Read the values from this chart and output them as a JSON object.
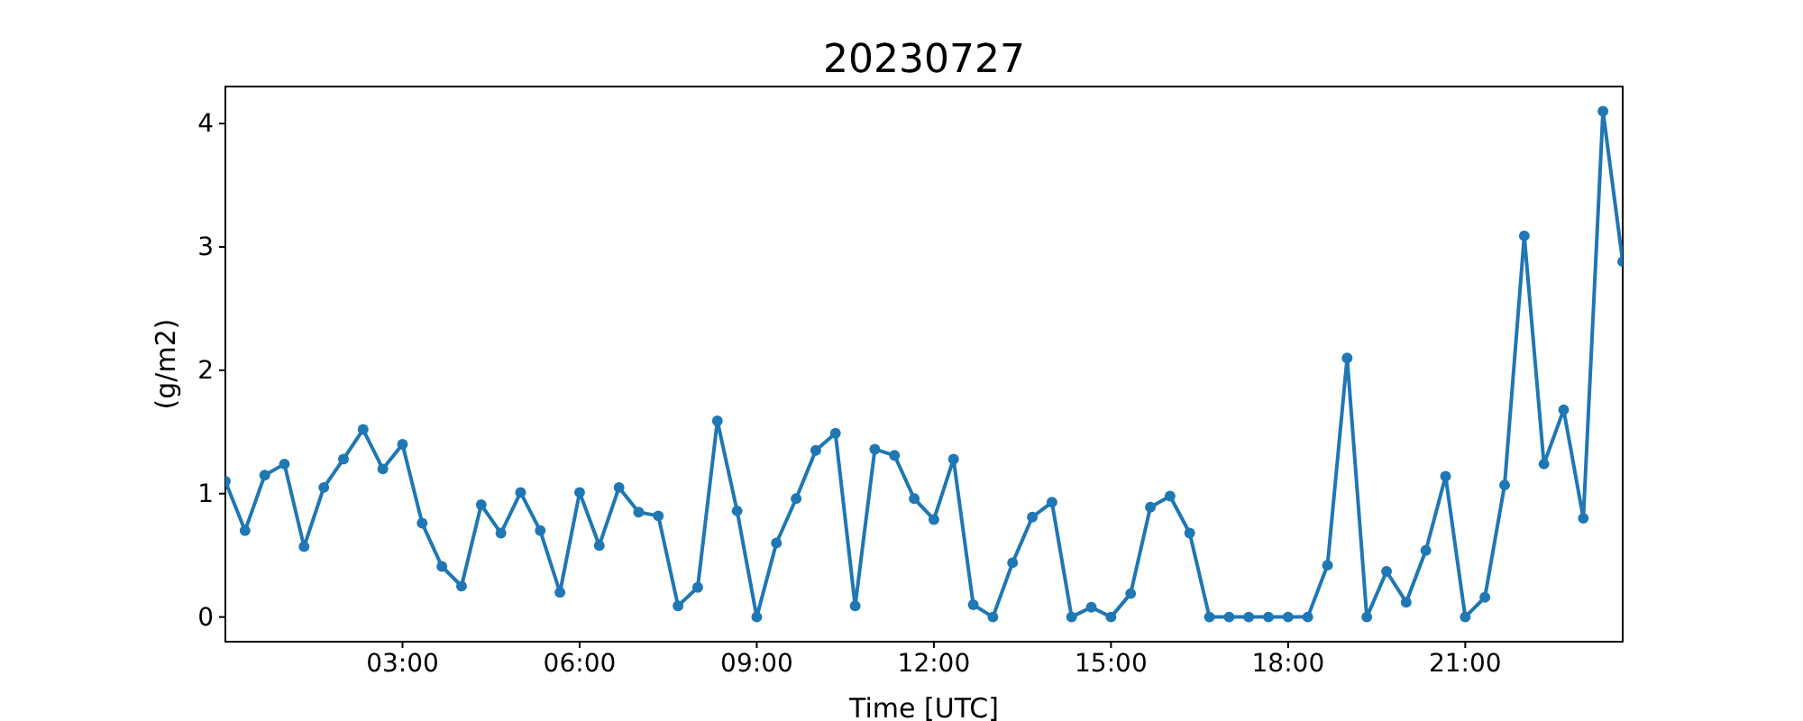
{
  "chart_data": {
    "type": "line",
    "title": "20230727",
    "xlabel": "Time [UTC]",
    "ylabel": "(g/m2)",
    "x": [
      0,
      0.333,
      0.667,
      1,
      1.333,
      1.667,
      2,
      2.333,
      2.667,
      3,
      3.333,
      3.667,
      4,
      4.333,
      4.667,
      5,
      5.333,
      5.667,
      6,
      6.333,
      6.667,
      7,
      7.333,
      7.667,
      8,
      8.333,
      8.667,
      9,
      9.333,
      9.667,
      10,
      10.333,
      10.667,
      11,
      11.333,
      11.667,
      12,
      12.333,
      12.667,
      13,
      13.333,
      13.667,
      14,
      14.333,
      14.667,
      15,
      15.333,
      15.667,
      16,
      16.333,
      16.667,
      17,
      17.333,
      17.667,
      18,
      18.333,
      18.667,
      19,
      19.333,
      19.667,
      20,
      20.333,
      20.667,
      21,
      21.333,
      21.667,
      22,
      22.333,
      22.667,
      23,
      23.333,
      23.667
    ],
    "series": [
      {
        "color": "#1f77b4",
        "values": [
          1.1,
          0.7,
          1.15,
          1.24,
          0.57,
          1.05,
          1.28,
          1.52,
          1.2,
          1.4,
          0.76,
          0.41,
          0.25,
          0.91,
          0.68,
          1.01,
          0.7,
          0.2,
          1.01,
          0.58,
          1.05,
          0.85,
          0.82,
          0.09,
          0.24,
          1.59,
          0.86,
          0,
          0.6,
          0.96,
          1.35,
          1.49,
          0.09,
          1.36,
          1.31,
          0.96,
          0.79,
          1.28,
          0.1,
          0,
          0.44,
          0.81,
          0.93,
          0,
          0.08,
          0,
          0.19,
          0.89,
          0.98,
          0.68,
          0,
          0,
          0,
          0,
          0,
          0,
          0.42,
          2.1,
          0,
          0.37,
          0.12,
          0.54,
          1.14,
          0,
          0.16,
          1.07,
          3.09,
          1.24,
          1.68,
          0.8,
          4.1,
          2.88
        ]
      }
    ],
    "xlim": [
      0,
      23.667
    ],
    "xticks": [
      {
        "value": 3,
        "label": "03:00"
      },
      {
        "value": 6,
        "label": "06:00"
      },
      {
        "value": 9,
        "label": "09:00"
      },
      {
        "value": 12,
        "label": "12:00"
      },
      {
        "value": 15,
        "label": "15:00"
      },
      {
        "value": 18,
        "label": "18:00"
      },
      {
        "value": 21,
        "label": "21:00"
      }
    ],
    "ylim": [
      -0.2,
      4.3
    ],
    "yticks": [
      0,
      1,
      2,
      3,
      4
    ],
    "marker": "circle",
    "line_style": "solid"
  }
}
